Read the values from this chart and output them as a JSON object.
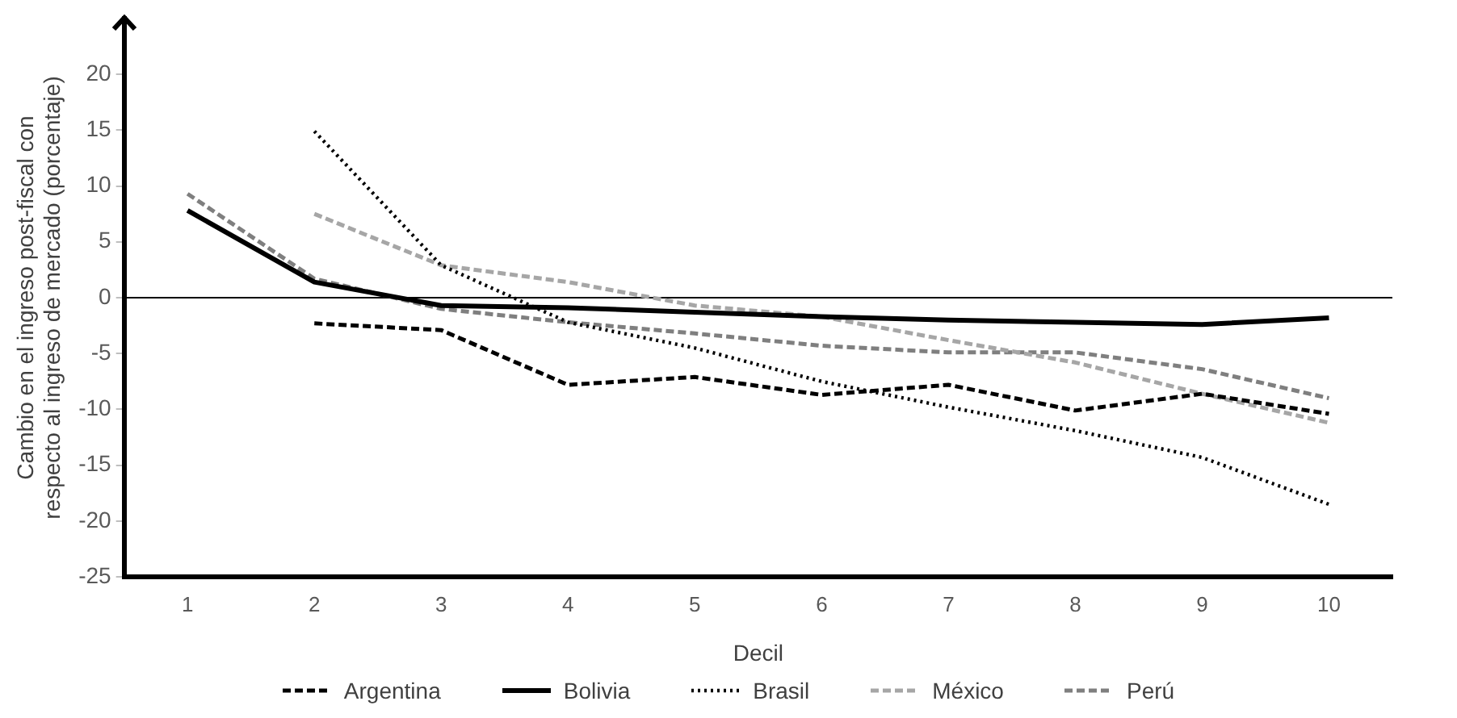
{
  "chart_data": {
    "type": "line",
    "xlabel": "Decil",
    "ylabel": "Cambio en el ingreso post-fiscal con respecto al ingreso de mercado (porcentaje)",
    "categories": [
      "1",
      "2",
      "3",
      "4",
      "5",
      "6",
      "7",
      "8",
      "9",
      "10"
    ],
    "ylim": [
      -25,
      25
    ],
    "yticks": [
      -25,
      -20,
      -15,
      -10,
      -5,
      0,
      5,
      10,
      15,
      20
    ],
    "grid": false,
    "legend": "bottom",
    "marker": "none",
    "ref_lines": [
      {
        "axis": "y",
        "value": 0,
        "color": "#000000"
      }
    ],
    "series": [
      {
        "name": "Argentina",
        "color": "#000000",
        "line_style": "dashed",
        "values": [
          null,
          -2.3,
          -2.9,
          -7.8,
          -7.1,
          -8.7,
          -7.8,
          -10.1,
          -8.6,
          -10.4
        ]
      },
      {
        "name": "Bolivia",
        "color": "#000000",
        "line_style": "solid",
        "values": [
          7.8,
          1.4,
          -0.7,
          -0.9,
          -1.3,
          -1.7,
          -2.0,
          -2.2,
          -2.4,
          -1.8
        ]
      },
      {
        "name": "Brasil",
        "color": "#000000",
        "line_style": "dotted",
        "values": [
          null,
          14.9,
          2.9,
          -2.2,
          -4.5,
          -7.5,
          -9.8,
          -11.9,
          -14.3,
          -18.5
        ]
      },
      {
        "name": "México",
        "color": "#a6a6a6",
        "line_style": "dashed",
        "values": [
          null,
          7.5,
          2.9,
          1.4,
          -0.7,
          -1.7,
          -3.8,
          -5.8,
          -8.6,
          -11.2
        ]
      },
      {
        "name": "Perú",
        "color": "#7f7f7f",
        "line_style": "dashed",
        "values": [
          9.3,
          1.7,
          -1.0,
          -2.2,
          -3.2,
          -4.3,
          -4.9,
          -4.9,
          -6.4,
          -9.0
        ]
      }
    ]
  }
}
